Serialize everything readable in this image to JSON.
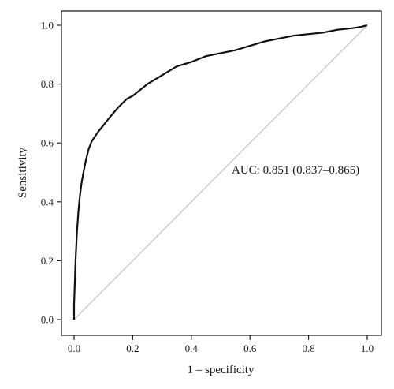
{
  "chart_data": {
    "type": "line",
    "title": "",
    "xlabel": "1 – specificity",
    "ylabel": "Sensitivity",
    "xlim": [
      0,
      1
    ],
    "ylim": [
      0,
      1
    ],
    "xticks": [
      "0.0",
      "0.2",
      "0.4",
      "0.6",
      "0.8",
      "1.0"
    ],
    "yticks": [
      "0.0",
      "0.2",
      "0.4",
      "0.6",
      "0.8",
      "1.0"
    ],
    "grid": false,
    "annotation": "AUC: 0.851 (0.837–0.865)",
    "series": [
      {
        "role": "roc-curve",
        "color": "#111111",
        "x": [
          0.0,
          0.0,
          0.005,
          0.01,
          0.015,
          0.02,
          0.025,
          0.03,
          0.04,
          0.05,
          0.06,
          0.07,
          0.08,
          0.1,
          0.12,
          0.15,
          0.18,
          0.2,
          0.25,
          0.3,
          0.35,
          0.4,
          0.45,
          0.5,
          0.55,
          0.6,
          0.65,
          0.7,
          0.75,
          0.8,
          0.85,
          0.9,
          0.95,
          0.98,
          1.0
        ],
        "y": [
          0.0,
          0.05,
          0.2,
          0.3,
          0.37,
          0.42,
          0.46,
          0.49,
          0.54,
          0.58,
          0.605,
          0.62,
          0.635,
          0.66,
          0.685,
          0.72,
          0.75,
          0.76,
          0.8,
          0.83,
          0.86,
          0.875,
          0.895,
          0.905,
          0.915,
          0.93,
          0.945,
          0.955,
          0.965,
          0.97,
          0.975,
          0.985,
          0.99,
          0.995,
          1.0
        ]
      },
      {
        "role": "reference-diagonal",
        "color": "#b5b5b5",
        "x": [
          0,
          1
        ],
        "y": [
          0,
          1
        ]
      }
    ]
  }
}
